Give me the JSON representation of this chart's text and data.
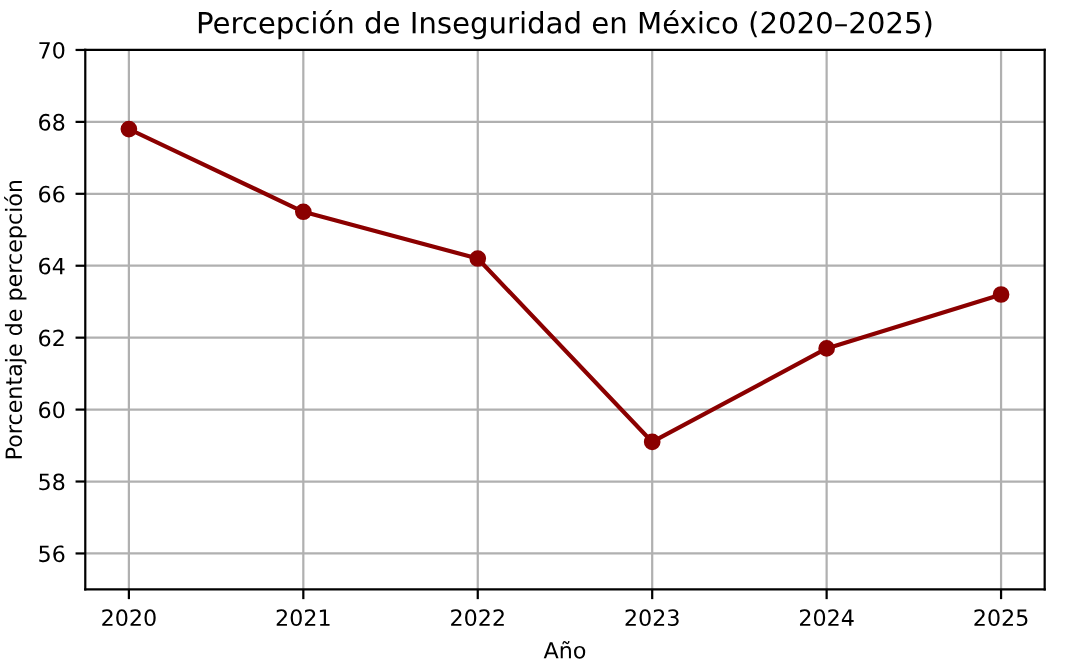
{
  "chart_data": {
    "type": "line",
    "title": "Percepción de Inseguridad en México (2020–2025)",
    "xlabel": "Año",
    "ylabel": "Porcentaje de percepción",
    "x": [
      2020,
      2021,
      2022,
      2023,
      2024,
      2025
    ],
    "series": [
      {
        "color": "#8b0000",
        "values": [
          67.8,
          65.5,
          64.2,
          59.1,
          61.7,
          63.2
        ]
      }
    ],
    "xlim": [
      2019.75,
      2025.25
    ],
    "xticks": [
      2020,
      2021,
      2022,
      2023,
      2024,
      2025
    ],
    "ylim": [
      55,
      70
    ],
    "yticks": [
      56,
      58,
      60,
      62,
      64,
      66,
      68,
      70
    ],
    "grid": true,
    "marker": "circle",
    "line_style": "solid",
    "legend": false
  }
}
